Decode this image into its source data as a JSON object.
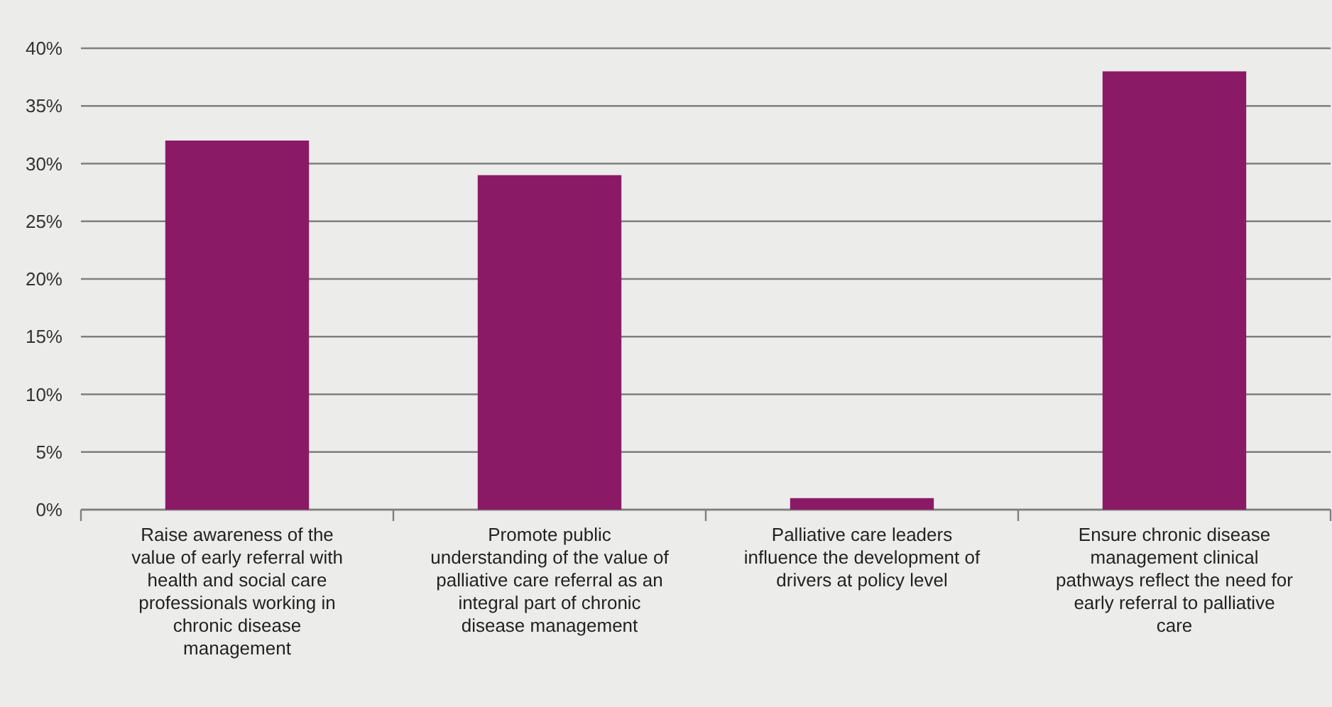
{
  "chart_data": {
    "type": "bar",
    "categories": [
      "Raise awareness of the value of early referral with health and social care professionals working in chronic disease management",
      "Promote public understanding of the value of palliative care referral as an integral part of chronic disease management",
      "Palliative care leaders influence the development of drivers at policy level",
      "Ensure chronic disease management clinical pathways reflect the need for early referral to palliative care"
    ],
    "values": [
      32,
      29,
      1,
      38
    ],
    "color": "#8b1a66",
    "ylim": [
      0,
      40
    ],
    "yticks": [
      {
        "value": 0,
        "label": "0%"
      },
      {
        "value": 5,
        "label": "5%"
      },
      {
        "value": 10,
        "label": "10%"
      },
      {
        "value": 15,
        "label": "15%"
      },
      {
        "value": 20,
        "label": "20%"
      },
      {
        "value": 25,
        "label": "25%"
      },
      {
        "value": 30,
        "label": "30%"
      },
      {
        "value": 35,
        "label": "35%"
      },
      {
        "value": 40,
        "label": "40%"
      }
    ],
    "grid": "y"
  }
}
